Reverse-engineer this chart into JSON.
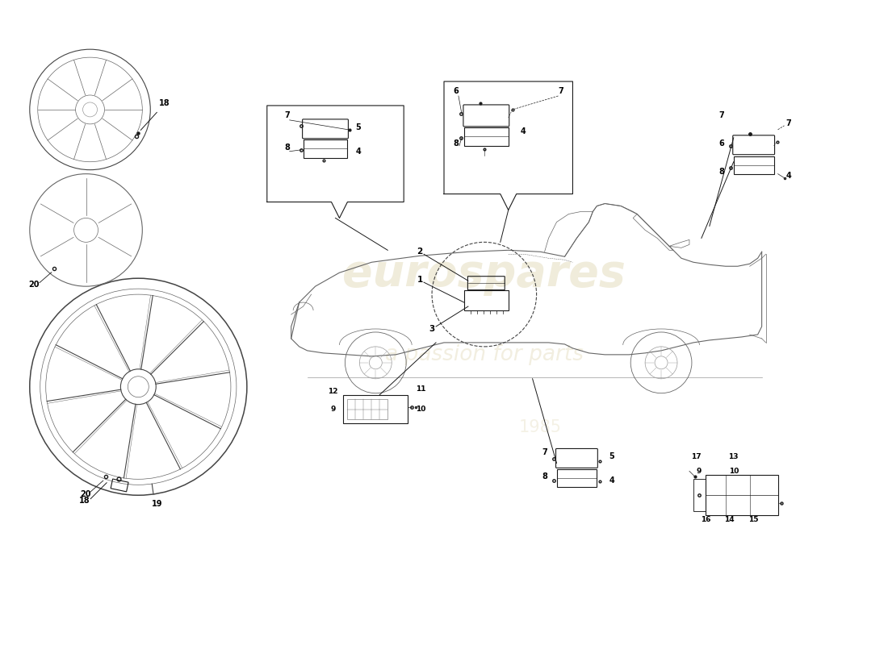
{
  "background_color": "#ffffff",
  "line_color": "#1a1a1a",
  "gray1": "#444444",
  "gray2": "#666666",
  "gray3": "#999999",
  "gray4": "#bbbbbb",
  "watermark_color1": "#d4c99a",
  "watermark_color2": "#c8b870",
  "figsize": [
    11.0,
    8.0
  ],
  "dpi": 100,
  "xlim": [
    0,
    110
  ],
  "ylim": [
    0,
    80
  ]
}
